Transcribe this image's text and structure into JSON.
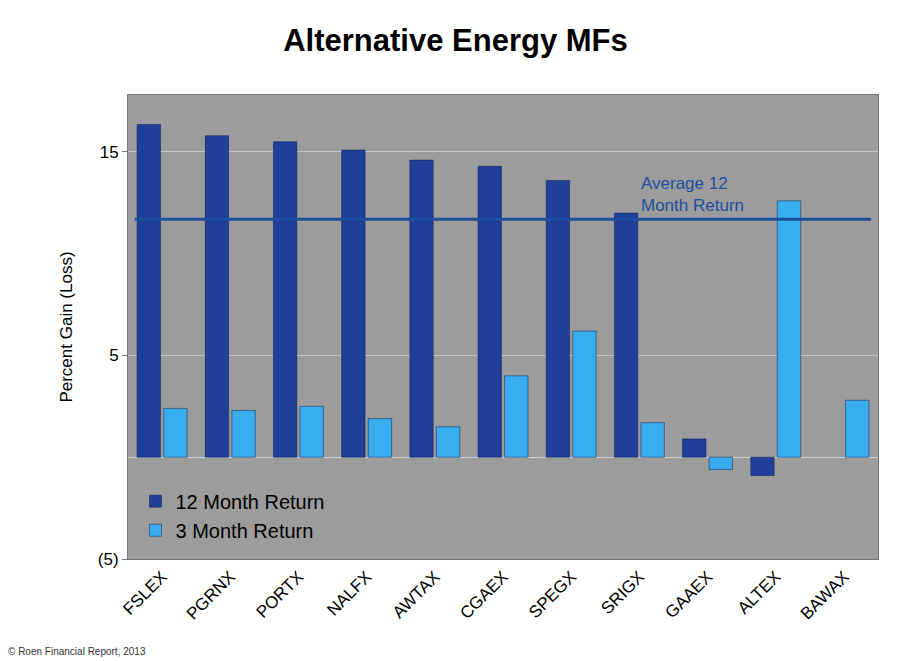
{
  "chart_data": {
    "type": "bar",
    "title": "Alternative Energy MFs",
    "y_label": "Percent Gain (Loss)",
    "categories": [
      "FSLEX",
      "PGRNX",
      "PORTX",
      "NALFX",
      "AWTAX",
      "CGAEX",
      "SPEGX",
      "SRIGX",
      "GAAEX",
      "ALTEX",
      "BAWAX"
    ],
    "series": [
      {
        "name": "12 Month Return",
        "color": "#1f3f9a",
        "values": [
          16.35,
          15.8,
          15.5,
          15.1,
          14.6,
          14.3,
          13.6,
          12.0,
          0.9,
          -0.9,
          null
        ]
      },
      {
        "name": "3 Month Return",
        "color": "#38aef0",
        "values": [
          2.4,
          2.3,
          2.5,
          1.9,
          1.5,
          4.0,
          6.2,
          1.7,
          -0.6,
          12.6,
          2.8
        ]
      }
    ],
    "ylim": [
      -5,
      17.8
    ],
    "yticks": [
      {
        "value": -5,
        "label": "(5)"
      },
      5,
      15
    ],
    "grid": true,
    "legend": "bottom left",
    "reference_lines": [
      {
        "value": 11.7,
        "label": "Average 12\nMonth Return",
        "color": "#1f4e9c"
      }
    ],
    "annotations": [
      {
        "text": "© Roen Financial Report, 2013"
      }
    ]
  }
}
